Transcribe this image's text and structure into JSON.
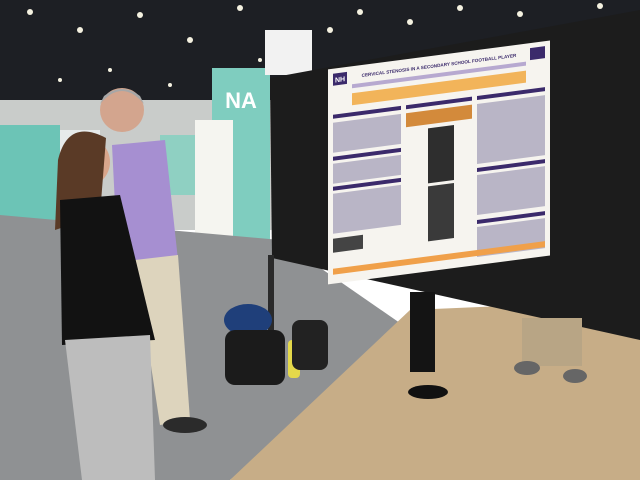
{
  "poster": {
    "logo": "NH",
    "title": "CERVICAL STENOSIS IN A SECONDARY SCHOOL FOOTBALL PLAYER"
  },
  "booth": {
    "sign": "NA"
  }
}
